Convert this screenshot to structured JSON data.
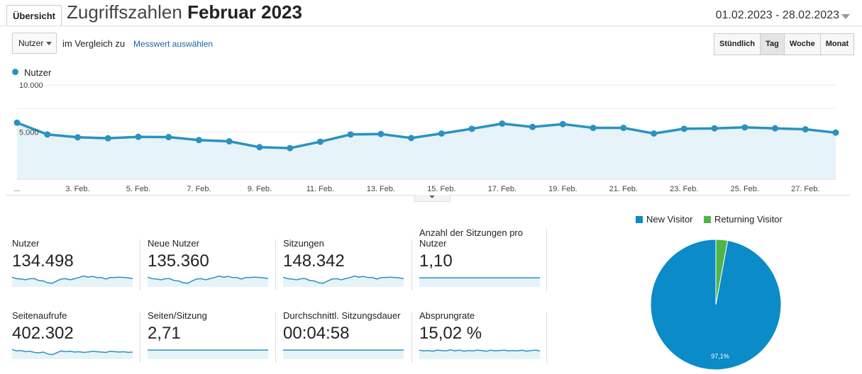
{
  "header": {
    "tab_label": "Übersicht",
    "title_prefix": "Zugriffszahlen",
    "title_bold": "Februar 2023",
    "date_range": "01.02.2023 - 28.02.2023"
  },
  "controls": {
    "metric_select": "Nutzer",
    "compare_label": "im Vergleich zu",
    "metric_link": "Messwert auswählen",
    "granularity": [
      "Stündlich",
      "Tag",
      "Woche",
      "Monat"
    ],
    "granularity_active": "Tag"
  },
  "colors": {
    "line": "#2a92c0",
    "fill": "#e6f3f9",
    "pie_new": "#0b8bc8",
    "pie_returning": "#4fb54a"
  },
  "chart_data": [
    {
      "type": "area",
      "series": [
        {
          "name": "Nutzer",
          "x": [
            1,
            2,
            3,
            4,
            5,
            6,
            7,
            8,
            9,
            10,
            11,
            12,
            13,
            14,
            15,
            16,
            17,
            18,
            19,
            20,
            21,
            22,
            23,
            24,
            25,
            26,
            27,
            28
          ],
          "values": [
            6000,
            4750,
            4450,
            4350,
            4500,
            4470,
            4150,
            4020,
            3400,
            3300,
            3980,
            4750,
            4800,
            4370,
            4850,
            5350,
            5900,
            5550,
            5850,
            5450,
            5450,
            4850,
            5350,
            5400,
            5500,
            5400,
            5300,
            4950
          ]
        }
      ],
      "ylim": [
        0,
        10000
      ],
      "yticks": [
        {
          "value": 5000,
          "label": "5.000"
        },
        {
          "value": 10000,
          "label": "10.000"
        }
      ],
      "xticks": [
        {
          "value": 1,
          "label": "..."
        },
        {
          "value": 3,
          "label": "3. Feb."
        },
        {
          "value": 5,
          "label": "5. Feb."
        },
        {
          "value": 7,
          "label": "7. Feb."
        },
        {
          "value": 9,
          "label": "9. Feb."
        },
        {
          "value": 11,
          "label": "11. Feb."
        },
        {
          "value": 13,
          "label": "13. Feb."
        },
        {
          "value": 15,
          "label": "15. Feb."
        },
        {
          "value": 17,
          "label": "17. Feb."
        },
        {
          "value": 19,
          "label": "19. Feb."
        },
        {
          "value": 21,
          "label": "21. Feb."
        },
        {
          "value": 23,
          "label": "23. Feb."
        },
        {
          "value": 25,
          "label": "25. Feb."
        },
        {
          "value": 27,
          "label": "27. Feb."
        }
      ],
      "legend": "top-left",
      "grid": true
    },
    {
      "type": "pie",
      "categories": [
        "New Visitor",
        "Returning Visitor"
      ],
      "values": [
        97.1,
        2.9
      ],
      "labels": [
        "97,1%",
        ""
      ],
      "legend": "top"
    }
  ],
  "metrics": [
    {
      "title": "Nutzer",
      "value": "134.498",
      "spark": [
        62,
        58,
        57,
        55,
        58,
        58,
        53,
        52,
        47,
        46,
        52,
        57,
        58,
        55,
        58,
        61,
        65,
        62,
        64,
        61,
        61,
        57,
        61,
        61,
        62,
        61,
        60,
        58
      ]
    },
    {
      "title": "Neue Nutzer",
      "value": "135.360",
      "spark": [
        62,
        58,
        57,
        55,
        58,
        58,
        53,
        52,
        47,
        46,
        52,
        57,
        58,
        55,
        58,
        61,
        65,
        62,
        64,
        61,
        61,
        57,
        61,
        61,
        62,
        61,
        60,
        58
      ]
    },
    {
      "title": "Sitzungen",
      "value": "148.342",
      "spark": [
        62,
        58,
        57,
        55,
        58,
        58,
        53,
        52,
        47,
        46,
        52,
        57,
        58,
        55,
        58,
        61,
        65,
        62,
        64,
        61,
        61,
        57,
        61,
        61,
        62,
        61,
        60,
        58
      ]
    },
    {
      "title": "Anzahl der Sitzungen pro Nutzer",
      "value": "1,10",
      "spark": [
        60,
        60,
        60,
        60,
        60,
        60,
        60,
        60,
        60,
        60,
        60,
        60,
        60,
        60,
        60,
        60,
        60,
        60,
        60,
        60,
        60,
        60,
        60,
        60,
        60,
        60,
        60,
        60
      ]
    },
    {
      "title": "Seitenaufrufe",
      "value": "402.302",
      "spark": [
        62,
        58,
        59,
        56,
        57,
        54,
        53,
        55,
        50,
        48,
        53,
        58,
        56,
        57,
        55,
        56,
        54,
        55,
        57,
        56,
        55,
        54,
        57,
        56,
        55,
        56,
        54,
        55
      ]
    },
    {
      "title": "Seiten/Sitzung",
      "value": "2,71",
      "spark": [
        60,
        60,
        60,
        60,
        60,
        60,
        60,
        60,
        60,
        60,
        60,
        60,
        60,
        60,
        60,
        60,
        60,
        60,
        60,
        60,
        60,
        60,
        60,
        60,
        60,
        60,
        60,
        60
      ]
    },
    {
      "title": "Durchschnittl. Sitzungsdauer",
      "value": "00:04:58",
      "spark": [
        60,
        60,
        60,
        60,
        60,
        60,
        60,
        60,
        60,
        60,
        60,
        60,
        60,
        60,
        60,
        60,
        60,
        60,
        60,
        60,
        60,
        60,
        60,
        60,
        60,
        60,
        60,
        60
      ]
    },
    {
      "title": "Absprungrate",
      "value": "15,02 %",
      "spark": [
        60,
        58,
        59,
        57,
        60,
        59,
        58,
        61,
        58,
        60,
        57,
        59,
        58,
        60,
        59,
        57,
        60,
        58,
        59,
        60,
        58,
        59,
        58,
        60,
        57,
        59,
        60,
        58
      ]
    }
  ]
}
